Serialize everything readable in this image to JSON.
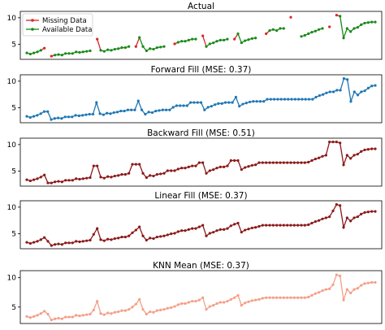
{
  "chart_data": [
    {
      "type": "line",
      "title": "Actual",
      "xlabel": "",
      "ylabel": "",
      "yticks": [
        5,
        10
      ],
      "ylim": [
        2.2,
        11.2
      ],
      "legend": {
        "placement": "top-left",
        "entries": [
          "Missing Data",
          "Available Data"
        ]
      },
      "series": [
        {
          "name": "Available Data",
          "color": "#1a8a1a",
          "values": [
            3.4,
            3.2,
            3.4,
            3.6,
            3.9,
            4.3,
            null,
            2.8,
            3.0,
            3.1,
            3.0,
            3.3,
            3.3,
            3.3,
            3.6,
            3.5,
            3.6,
            3.7,
            3.8,
            null,
            6.0,
            3.9,
            3.7,
            4.0,
            3.9,
            4.1,
            4.2,
            4.4,
            4.4,
            4.6,
            null,
            4.6,
            6.3,
            4.6,
            3.8,
            4.2,
            4.1,
            4.4,
            4.5,
            4.6,
            null,
            null,
            5.1,
            5.4,
            5.6,
            5.6,
            5.8,
            6.0,
            6.0,
            null,
            6.6,
            4.6,
            5.1,
            5.3,
            5.6,
            5.8,
            5.8,
            6.0,
            null,
            6.0,
            7.0,
            5.3,
            5.7,
            5.9,
            6.1,
            6.2,
            null,
            null,
            7.0,
            7.6,
            7.8,
            7.6,
            8.0,
            8.0,
            null,
            10.1,
            null,
            null,
            6.5,
            6.7,
            7.0,
            7.3,
            7.5,
            7.8,
            8.0,
            null,
            8.3,
            null,
            10.5,
            10.3,
            6.2,
            8.0,
            7.4,
            8.0,
            8.2,
            8.7,
            9.0,
            9.1,
            9.2,
            9.2
          ],
          "missing": [
            false,
            false,
            false,
            false,
            false,
            true,
            true,
            true,
            false,
            false,
            false,
            false,
            false,
            false,
            false,
            false,
            false,
            false,
            false,
            true,
            true,
            false,
            false,
            false,
            false,
            false,
            false,
            false,
            false,
            false,
            true,
            true,
            false,
            false,
            false,
            false,
            false,
            false,
            false,
            false,
            true,
            true,
            true,
            false,
            false,
            false,
            false,
            false,
            false,
            true,
            true,
            false,
            false,
            false,
            false,
            false,
            false,
            false,
            true,
            true,
            false,
            false,
            false,
            false,
            false,
            false,
            true,
            true,
            true,
            false,
            false,
            false,
            false,
            false,
            true,
            true,
            true,
            true,
            false,
            false,
            false,
            false,
            false,
            false,
            false,
            true,
            true,
            true,
            true,
            false,
            false,
            false,
            false,
            false,
            false,
            false,
            false,
            false,
            false,
            false
          ]
        }
      ]
    },
    {
      "type": "line",
      "title": "Forward Fill (MSE: 0.37)",
      "xlabel": "",
      "ylabel": "",
      "yticks": [
        5,
        10
      ],
      "ylim": [
        2.2,
        11.2
      ],
      "series": [
        {
          "name": "",
          "color": "#1f77b4",
          "values": [
            3.4,
            3.2,
            3.4,
            3.6,
            3.9,
            4.3,
            4.3,
            2.8,
            3.0,
            3.1,
            3.0,
            3.3,
            3.3,
            3.3,
            3.6,
            3.5,
            3.6,
            3.7,
            3.8,
            3.8,
            6.0,
            3.9,
            3.7,
            4.0,
            3.9,
            4.1,
            4.2,
            4.4,
            4.4,
            4.6,
            4.6,
            4.6,
            6.3,
            4.6,
            3.8,
            4.2,
            4.1,
            4.4,
            4.5,
            4.6,
            4.6,
            4.6,
            5.1,
            5.4,
            5.4,
            5.4,
            5.4,
            6.0,
            6.0,
            6.0,
            6.0,
            4.6,
            5.1,
            5.3,
            5.6,
            5.8,
            5.8,
            6.0,
            6.0,
            6.0,
            7.0,
            5.3,
            5.7,
            5.9,
            6.1,
            6.2,
            6.2,
            6.2,
            6.2,
            6.6,
            6.6,
            6.6,
            6.6,
            6.6,
            6.6,
            6.6,
            6.6,
            6.6,
            6.6,
            6.6,
            6.6,
            6.6,
            6.6,
            7.0,
            7.3,
            7.5,
            7.8,
            8.0,
            8.0,
            8.3,
            8.3,
            10.5,
            10.3,
            6.2,
            8.0,
            7.4,
            8.0,
            8.2,
            8.7,
            9.1,
            9.2
          ]
        }
      ]
    },
    {
      "type": "line",
      "title": "Backward Fill (MSE: 0.51)",
      "xlabel": "",
      "ylabel": "",
      "yticks": [
        5,
        10
      ],
      "ylim": [
        2.2,
        11.2
      ],
      "series": [
        {
          "name": "",
          "color": "#8b1a1a",
          "values": [
            3.4,
            3.2,
            3.4,
            3.6,
            3.9,
            4.3,
            2.8,
            2.8,
            3.0,
            3.1,
            3.0,
            3.3,
            3.3,
            3.3,
            3.6,
            3.5,
            3.6,
            3.7,
            3.8,
            6.0,
            6.0,
            3.9,
            3.7,
            4.0,
            3.9,
            4.1,
            4.2,
            4.4,
            4.4,
            4.6,
            6.3,
            6.3,
            6.3,
            4.6,
            3.8,
            4.2,
            4.1,
            4.4,
            4.5,
            4.6,
            5.1,
            5.1,
            5.1,
            5.4,
            5.6,
            5.6,
            5.8,
            6.0,
            6.0,
            6.6,
            6.6,
            4.6,
            5.1,
            5.3,
            5.6,
            5.8,
            5.8,
            6.0,
            7.0,
            7.0,
            7.0,
            5.3,
            5.7,
            5.9,
            6.1,
            6.2,
            6.6,
            6.6,
            6.6,
            6.6,
            6.6,
            6.6,
            6.6,
            6.6,
            6.6,
            6.6,
            6.6,
            6.6,
            6.6,
            6.6,
            6.7,
            7.0,
            7.3,
            7.5,
            7.8,
            8.0,
            10.5,
            10.5,
            10.5,
            10.3,
            6.2,
            8.0,
            7.4,
            8.0,
            8.2,
            8.7,
            9.0,
            9.1,
            9.2,
            9.2
          ]
        }
      ]
    },
    {
      "type": "line",
      "title": "Linear Fill (MSE: 0.37)",
      "xlabel": "",
      "ylabel": "",
      "yticks": [
        5,
        10
      ],
      "ylim": [
        2.2,
        11.2
      ],
      "series": [
        {
          "name": "",
          "color": "#8b1a1a",
          "values": [
            3.4,
            3.2,
            3.4,
            3.6,
            3.9,
            4.3,
            3.6,
            2.8,
            3.0,
            3.1,
            3.0,
            3.3,
            3.3,
            3.3,
            3.6,
            3.5,
            3.6,
            3.7,
            3.8,
            4.9,
            6.0,
            3.9,
            3.7,
            4.0,
            3.9,
            4.1,
            4.2,
            4.4,
            4.4,
            4.6,
            5.2,
            5.7,
            6.3,
            4.6,
            3.8,
            4.2,
            4.1,
            4.4,
            4.5,
            4.6,
            4.8,
            5.0,
            5.1,
            5.4,
            5.6,
            5.6,
            5.8,
            6.0,
            6.0,
            6.3,
            6.6,
            4.6,
            5.1,
            5.3,
            5.6,
            5.8,
            5.8,
            6.0,
            6.5,
            6.8,
            7.0,
            5.3,
            5.7,
            5.9,
            6.1,
            6.2,
            6.4,
            6.6,
            6.6,
            6.6,
            6.6,
            6.6,
            6.6,
            6.6,
            6.6,
            6.6,
            6.6,
            6.6,
            6.6,
            6.6,
            6.7,
            7.0,
            7.3,
            7.5,
            7.8,
            8.0,
            8.2,
            9.3,
            10.5,
            10.3,
            6.2,
            8.0,
            7.4,
            8.0,
            8.2,
            8.7,
            9.0,
            9.1,
            9.2,
            9.2
          ]
        }
      ]
    },
    {
      "type": "line",
      "title": "KNN Mean (MSE: 0.37)",
      "xlabel": "",
      "ylabel": "",
      "yticks": [
        5,
        10
      ],
      "ylim": [
        2.2,
        11.2
      ],
      "series": [
        {
          "name": "",
          "color": "#f4a088",
          "values": [
            3.4,
            3.2,
            3.4,
            3.6,
            3.9,
            4.3,
            3.8,
            2.8,
            3.0,
            3.1,
            3.0,
            3.3,
            3.3,
            3.3,
            3.6,
            3.5,
            3.6,
            3.7,
            3.8,
            4.5,
            6.0,
            3.9,
            3.7,
            4.0,
            3.9,
            4.1,
            4.2,
            4.4,
            4.4,
            4.6,
            5.0,
            5.5,
            6.3,
            4.6,
            3.8,
            4.2,
            4.1,
            4.4,
            4.5,
            4.6,
            4.8,
            4.9,
            5.1,
            5.4,
            5.6,
            5.6,
            5.8,
            6.0,
            6.0,
            6.2,
            6.6,
            4.6,
            5.1,
            5.3,
            5.6,
            5.8,
            5.8,
            6.0,
            6.3,
            6.6,
            7.0,
            5.3,
            5.7,
            5.9,
            6.1,
            6.2,
            6.3,
            6.5,
            6.6,
            6.6,
            6.6,
            6.6,
            6.6,
            6.6,
            6.6,
            6.6,
            6.6,
            6.6,
            6.6,
            6.6,
            6.7,
            7.0,
            7.3,
            7.5,
            7.8,
            8.0,
            8.1,
            8.8,
            10.5,
            10.3,
            6.2,
            8.0,
            7.4,
            8.0,
            8.2,
            8.7,
            9.0,
            9.1,
            9.2,
            9.2
          ]
        }
      ]
    }
  ]
}
